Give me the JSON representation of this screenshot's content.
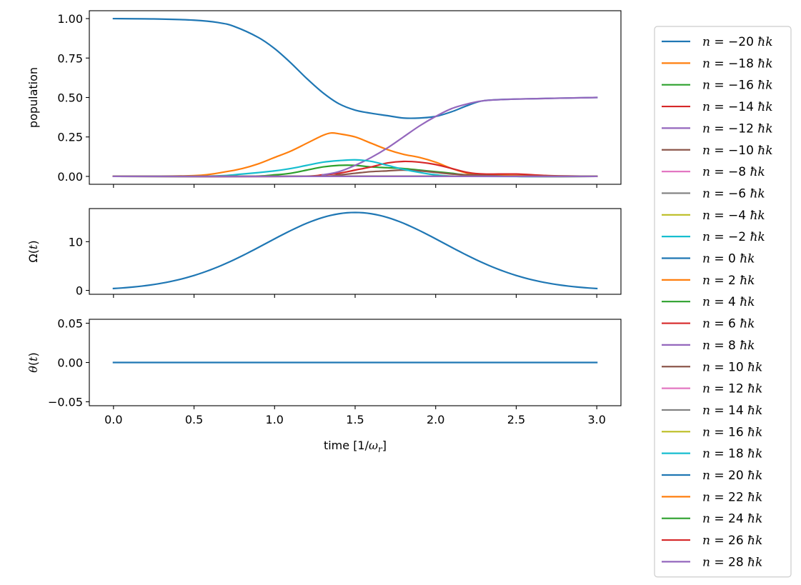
{
  "chart_data": [
    {
      "type": "line",
      "ylabel": "population",
      "xlim": [
        -0.15,
        3.15
      ],
      "ylim": [
        -0.05,
        1.05
      ],
      "yticks": [
        0.0,
        0.25,
        0.5,
        0.75,
        1.0
      ],
      "ytick_labels": [
        "0.00",
        "0.25",
        "0.50",
        "0.75",
        "1.00"
      ],
      "grid": false,
      "series": [
        {
          "name": "n=-20 ħk",
          "color": "#1f77b4",
          "x": [
            0,
            0.25,
            0.5,
            0.65,
            0.75,
            0.9,
            1.0,
            1.1,
            1.2,
            1.3,
            1.4,
            1.5,
            1.6,
            1.7,
            1.8,
            1.9,
            2.0,
            2.1,
            2.2,
            2.3,
            2.5,
            3.0
          ],
          "y": [
            1.0,
            0.998,
            0.99,
            0.975,
            0.95,
            0.88,
            0.81,
            0.72,
            0.62,
            0.53,
            0.46,
            0.42,
            0.4,
            0.385,
            0.37,
            0.37,
            0.38,
            0.41,
            0.45,
            0.48,
            0.49,
            0.5
          ]
        },
        {
          "name": "n=-18 ħk",
          "color": "#ff7f0e",
          "x": [
            0,
            0.5,
            0.7,
            0.8,
            0.9,
            1.0,
            1.1,
            1.2,
            1.3,
            1.35,
            1.4,
            1.5,
            1.6,
            1.7,
            1.8,
            1.9,
            2.0,
            2.1,
            2.2,
            2.3,
            2.5,
            3.0
          ],
          "y": [
            0,
            0.005,
            0.03,
            0.05,
            0.08,
            0.12,
            0.16,
            0.21,
            0.26,
            0.275,
            0.27,
            0.25,
            0.21,
            0.17,
            0.14,
            0.12,
            0.09,
            0.05,
            0.02,
            0.01,
            0.005,
            0
          ]
        },
        {
          "name": "n=-16 ħk",
          "color": "#2ca02c",
          "x": [
            0,
            0.8,
            1.0,
            1.1,
            1.2,
            1.3,
            1.4,
            1.5,
            1.6,
            1.7,
            1.8,
            1.9,
            2.0,
            2.1,
            2.2,
            2.5,
            3.0
          ],
          "y": [
            0,
            0,
            0.01,
            0.02,
            0.04,
            0.06,
            0.07,
            0.07,
            0.06,
            0.055,
            0.05,
            0.04,
            0.03,
            0.02,
            0.01,
            0,
            0
          ]
        },
        {
          "name": "n=-14 ħk",
          "color": "#d62728",
          "x": [
            0,
            1.1,
            1.3,
            1.4,
            1.5,
            1.6,
            1.7,
            1.8,
            1.9,
            2.0,
            2.1,
            2.2,
            2.3,
            2.5,
            2.7,
            3.0
          ],
          "y": [
            0,
            0,
            0.01,
            0.02,
            0.04,
            0.06,
            0.085,
            0.095,
            0.09,
            0.075,
            0.05,
            0.025,
            0.015,
            0.015,
            0.005,
            0
          ]
        },
        {
          "name": "n=-12 ħk",
          "color": "#9467bd",
          "x": [
            0,
            1.2,
            1.3,
            1.4,
            1.5,
            1.6,
            1.7,
            1.8,
            1.9,
            2.0,
            2.1,
            2.2,
            2.3,
            2.5,
            3.0
          ],
          "y": [
            0,
            0,
            0.01,
            0.03,
            0.07,
            0.12,
            0.18,
            0.25,
            0.32,
            0.38,
            0.43,
            0.46,
            0.48,
            0.49,
            0.5
          ]
        },
        {
          "name": "n=-10 ħk",
          "color": "#8c564b",
          "x": [
            0,
            1.2,
            1.4,
            1.5,
            1.6,
            1.7,
            1.8,
            1.9,
            2.0,
            2.1,
            2.2,
            2.5,
            3.0
          ],
          "y": [
            0,
            0,
            0.01,
            0.02,
            0.03,
            0.035,
            0.04,
            0.035,
            0.025,
            0.015,
            0.01,
            0,
            0
          ]
        },
        {
          "name": "n=-8 ħk",
          "color": "#e377c2",
          "x": [
            0,
            3.0
          ],
          "y": [
            0,
            0
          ]
        },
        {
          "name": "n=-6 ħk",
          "color": "#7f7f7f",
          "x": [
            0,
            3.0
          ],
          "y": [
            0,
            0
          ]
        },
        {
          "name": "n=-4 ħk",
          "color": "#bcbd22",
          "x": [
            0,
            3.0
          ],
          "y": [
            0,
            0
          ]
        },
        {
          "name": "n=-2 ħk",
          "color": "#17becf",
          "x": [
            0,
            0.6,
            0.8,
            1.0,
            1.1,
            1.2,
            1.3,
            1.4,
            1.5,
            1.6,
            1.7,
            1.8,
            1.9,
            2.0,
            2.2,
            3.0
          ],
          "y": [
            0,
            0.002,
            0.015,
            0.035,
            0.05,
            0.07,
            0.09,
            0.1,
            0.105,
            0.095,
            0.07,
            0.045,
            0.025,
            0.01,
            0,
            0
          ]
        },
        {
          "name": "n=0 ħk",
          "color": "#1f77b4",
          "x": [
            0,
            3.0
          ],
          "y": [
            0,
            0
          ]
        },
        {
          "name": "n=2 ħk",
          "color": "#ff7f0e",
          "x": [
            0,
            3.0
          ],
          "y": [
            0,
            0
          ]
        },
        {
          "name": "n=4 ħk",
          "color": "#2ca02c",
          "x": [
            0,
            3.0
          ],
          "y": [
            0,
            0
          ]
        },
        {
          "name": "n=6 ħk",
          "color": "#d62728",
          "x": [
            0,
            3.0
          ],
          "y": [
            0,
            0
          ]
        },
        {
          "name": "n=8 ħk",
          "color": "#9467bd",
          "x": [
            0,
            3.0
          ],
          "y": [
            0,
            0
          ]
        },
        {
          "name": "n=10 ħk",
          "color": "#8c564b",
          "x": [
            0,
            3.0
          ],
          "y": [
            0,
            0
          ]
        },
        {
          "name": "n=12 ħk",
          "color": "#e377c2",
          "x": [
            0,
            3.0
          ],
          "y": [
            0,
            0
          ]
        },
        {
          "name": "n=14 ħk",
          "color": "#7f7f7f",
          "x": [
            0,
            3.0
          ],
          "y": [
            0,
            0
          ]
        },
        {
          "name": "n=16 ħk",
          "color": "#bcbd22",
          "x": [
            0,
            3.0
          ],
          "y": [
            0,
            0
          ]
        },
        {
          "name": "n=18 ħk",
          "color": "#17becf",
          "x": [
            0,
            3.0
          ],
          "y": [
            0,
            0
          ]
        },
        {
          "name": "n=20 ħk",
          "color": "#1f77b4",
          "x": [
            0,
            3.0
          ],
          "y": [
            0,
            0
          ]
        },
        {
          "name": "n=22 ħk",
          "color": "#ff7f0e",
          "x": [
            0,
            3.0
          ],
          "y": [
            0,
            0
          ]
        },
        {
          "name": "n=24 ħk",
          "color": "#2ca02c",
          "x": [
            0,
            3.0
          ],
          "y": [
            0,
            0
          ]
        },
        {
          "name": "n=26 ħk",
          "color": "#d62728",
          "x": [
            0,
            3.0
          ],
          "y": [
            0,
            0
          ]
        },
        {
          "name": "n=28 ħk",
          "color": "#9467bd",
          "x": [
            0,
            3.0
          ],
          "y": [
            0,
            0
          ]
        }
      ]
    },
    {
      "type": "line",
      "ylabel": "Ω(t)",
      "xlim": [
        -0.15,
        3.15
      ],
      "ylim": [
        -0.8,
        16.8
      ],
      "yticks": [
        0,
        10
      ],
      "ytick_labels": [
        "0",
        "10"
      ],
      "grid": false,
      "series": [
        {
          "color": "#1f77b4",
          "function": "gaussian",
          "amplitude": 16,
          "center": 1.5,
          "sigma": 0.55,
          "x_range": [
            0,
            3.0
          ]
        }
      ]
    },
    {
      "type": "line",
      "ylabel": "θ(t)",
      "xlabel": "time [1/ω_r]",
      "xlim": [
        -0.15,
        3.15
      ],
      "ylim": [
        -0.055,
        0.055
      ],
      "yticks": [
        -0.05,
        0.0,
        0.05
      ],
      "ytick_labels": [
        "−0.05",
        "0.00",
        "0.05"
      ],
      "xticks": [
        0,
        0.5,
        1.0,
        1.5,
        2.0,
        2.5,
        3.0
      ],
      "xtick_labels": [
        "0.0",
        "0.5",
        "1.0",
        "1.5",
        "2.0",
        "2.5",
        "3.0"
      ],
      "grid": false,
      "series": [
        {
          "color": "#1f77b4",
          "x": [
            0,
            3.0
          ],
          "y": [
            0,
            0
          ]
        }
      ]
    }
  ],
  "legend": {
    "placement": "outside-right",
    "entries": [
      {
        "prefix": "n",
        "value": "−20",
        "color": "#1f77b4"
      },
      {
        "prefix": "n",
        "value": "−18",
        "color": "#ff7f0e"
      },
      {
        "prefix": "n",
        "value": "−16",
        "color": "#2ca02c"
      },
      {
        "prefix": "n",
        "value": "−14",
        "color": "#d62728"
      },
      {
        "prefix": "n",
        "value": "−12",
        "color": "#9467bd"
      },
      {
        "prefix": "n",
        "value": "−10",
        "color": "#8c564b"
      },
      {
        "prefix": "n",
        "value": "−8",
        "color": "#e377c2"
      },
      {
        "prefix": "n",
        "value": "−6",
        "color": "#7f7f7f"
      },
      {
        "prefix": "n",
        "value": "−4",
        "color": "#bcbd22"
      },
      {
        "prefix": "n",
        "value": "−2",
        "color": "#17becf"
      },
      {
        "prefix": "n",
        "value": "0",
        "color": "#1f77b4"
      },
      {
        "prefix": "n",
        "value": "2",
        "color": "#ff7f0e"
      },
      {
        "prefix": "n",
        "value": "4",
        "color": "#2ca02c"
      },
      {
        "prefix": "n",
        "value": "6",
        "color": "#d62728"
      },
      {
        "prefix": "n",
        "value": "8",
        "color": "#9467bd"
      },
      {
        "prefix": "n",
        "value": "10",
        "color": "#8c564b"
      },
      {
        "prefix": "n",
        "value": "12",
        "color": "#e377c2"
      },
      {
        "prefix": "n",
        "value": "14",
        "color": "#7f7f7f"
      },
      {
        "prefix": "n",
        "value": "16",
        "color": "#bcbd22"
      },
      {
        "prefix": "n",
        "value": "18",
        "color": "#17becf"
      },
      {
        "prefix": "n",
        "value": "20",
        "color": "#1f77b4"
      },
      {
        "prefix": "n",
        "value": "22",
        "color": "#ff7f0e"
      },
      {
        "prefix": "n",
        "value": "24",
        "color": "#2ca02c"
      },
      {
        "prefix": "n",
        "value": "26",
        "color": "#d62728"
      },
      {
        "prefix": "n",
        "value": "28",
        "color": "#9467bd"
      }
    ],
    "suffix_hbar": "ħ",
    "suffix_k": "k"
  }
}
